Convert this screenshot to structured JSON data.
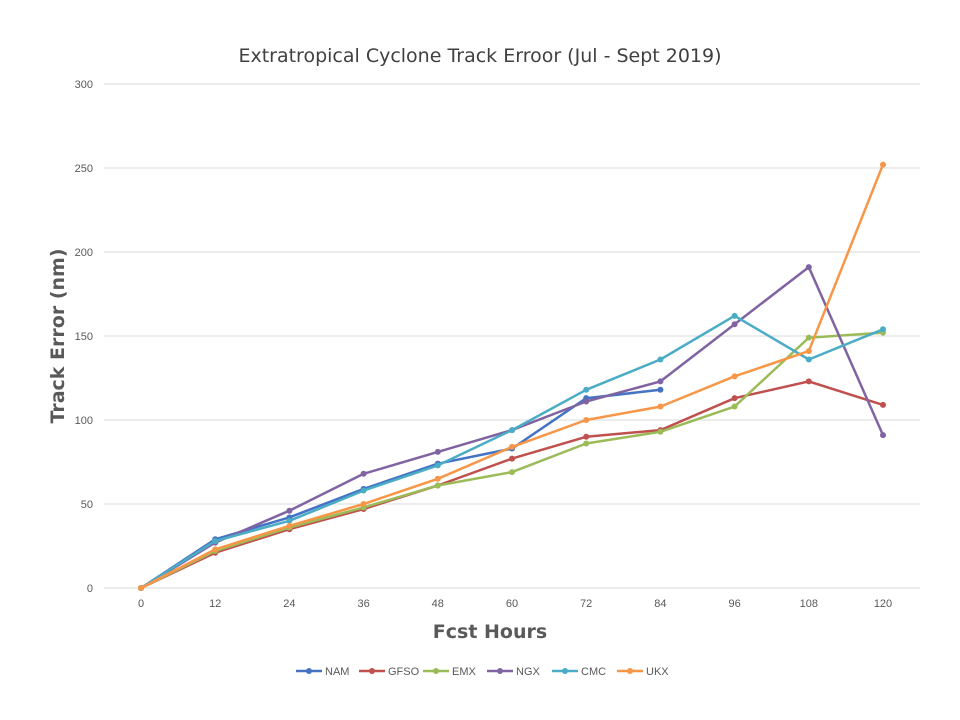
{
  "chart_data": {
    "type": "line",
    "title": "Extratropical Cyclone Track Erroor  (Jul - Sept 2019)",
    "xlabel": "Fcst Hours",
    "ylabel": "Track Error  (nm)",
    "x": [
      0,
      12,
      24,
      36,
      48,
      60,
      72,
      84,
      96,
      108,
      120
    ],
    "ylim": [
      0,
      300
    ],
    "yticks": [
      0,
      50,
      100,
      150,
      200,
      250,
      300
    ],
    "grid": "horizontal",
    "legend_position": "bottom",
    "series": [
      {
        "name": "NAM",
        "color": "#4472c4",
        "values": [
          0,
          29,
          42,
          59,
          74,
          83,
          113,
          118,
          null,
          null,
          null
        ]
      },
      {
        "name": "GFSO",
        "color": "#c0504d",
        "values": [
          0,
          21,
          35,
          47,
          61,
          77,
          90,
          94,
          113,
          123,
          109
        ]
      },
      {
        "name": "EMX",
        "color": "#9bbb59",
        "values": [
          0,
          22,
          36,
          48,
          61,
          69,
          86,
          93,
          108,
          149,
          152
        ]
      },
      {
        "name": "NGX",
        "color": "#8064a2",
        "values": [
          0,
          27,
          46,
          68,
          81,
          94,
          111,
          123,
          157,
          191,
          91
        ]
      },
      {
        "name": "CMC",
        "color": "#4bacc6",
        "values": [
          0,
          28,
          40,
          58,
          73,
          94,
          118,
          136,
          162,
          136,
          154
        ]
      },
      {
        "name": "UKX",
        "color": "#f79646",
        "values": [
          0,
          23,
          37,
          50,
          65,
          84,
          100,
          108,
          126,
          141,
          252
        ]
      }
    ]
  }
}
